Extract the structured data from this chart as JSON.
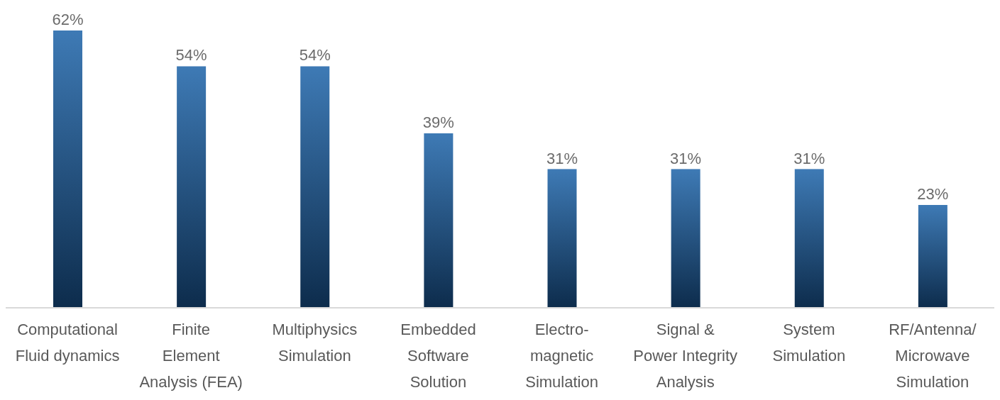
{
  "chart_data": {
    "type": "bar",
    "categories": [
      "Computational\nFluid dynamics",
      "Finite\nElement\nAnalysis (FEA)",
      "Multiphysics\nSimulation",
      "Embedded\nSoftware\nSolution",
      "Electro-\nmagnetic\nSimulation",
      "Signal &\nPower Integrity\nAnalysis",
      "System\nSimulation",
      "RF/Antenna/\nMicrowave\nSimulation"
    ],
    "values": [
      62,
      54,
      54,
      39,
      31,
      31,
      31,
      23
    ],
    "value_labels": [
      "62%",
      "54%",
      "54%",
      "39%",
      "31%",
      "31%",
      "31%",
      "23%"
    ],
    "color": "#1c62a8",
    "grid": false,
    "legend": false
  }
}
